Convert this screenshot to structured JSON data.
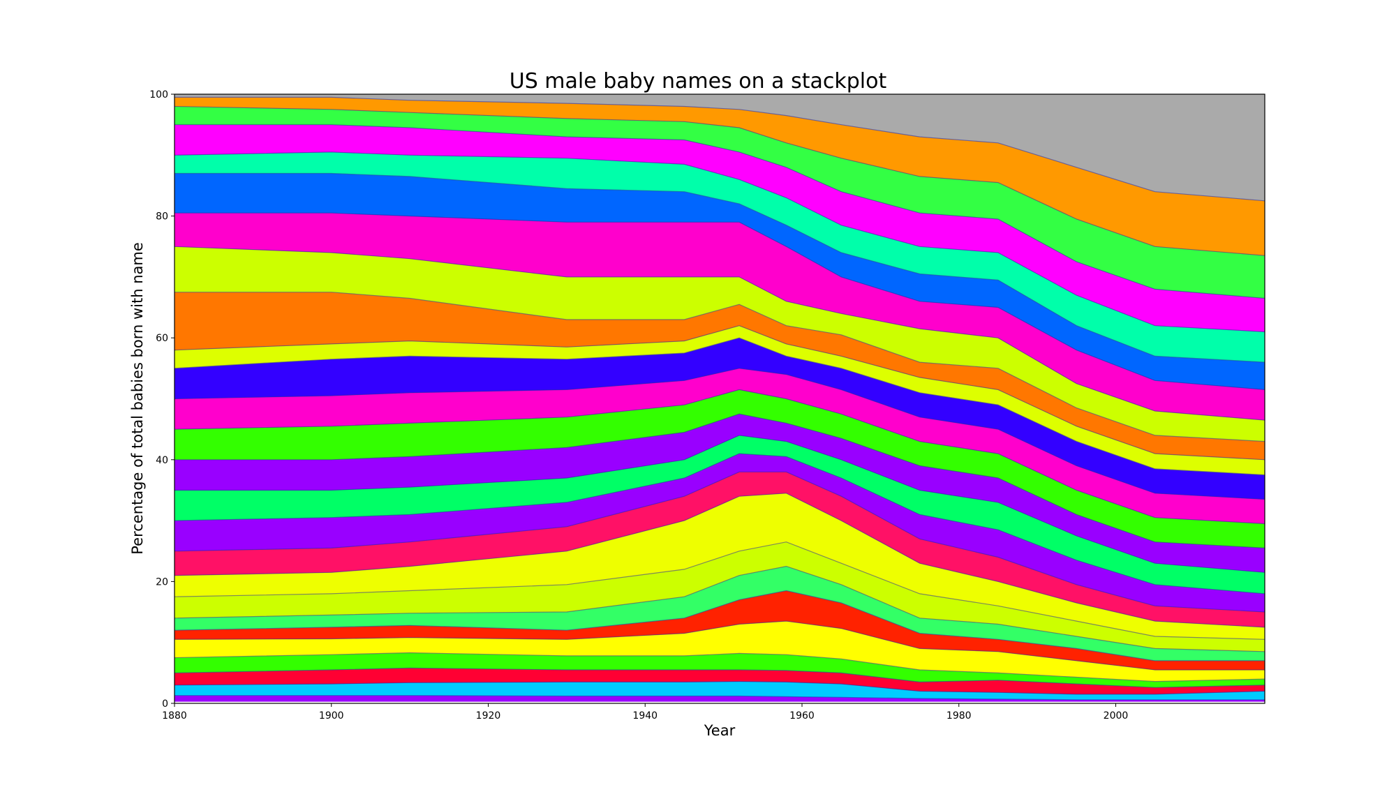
{
  "chart_data": {
    "type": "area",
    "stacked": true,
    "title": "US male baby names on a stackplot",
    "xlabel": "Year",
    "ylabel": "Percentage of total babies born with name",
    "xlim": [
      1880,
      2019
    ],
    "ylim": [
      0,
      100
    ],
    "xticks": [
      1880,
      1900,
      1920,
      1940,
      1960,
      1980,
      2000
    ],
    "yticks": [
      0,
      20,
      40,
      60,
      80,
      100
    ],
    "grid": false,
    "legend": "none",
    "x": [
      1880,
      1900,
      1910,
      1930,
      1945,
      1952,
      1958,
      1965,
      1975,
      1985,
      1995,
      2005,
      2019
    ],
    "boundaries": [
      [
        0.3,
        0.3,
        0.3,
        0.3,
        0.3,
        0.3,
        0.3,
        0.3,
        0.3,
        0.3,
        0.3,
        0.3,
        0.3
      ],
      [
        1.3,
        1.3,
        1.3,
        1.2,
        1.2,
        1.2,
        1.1,
        1.0,
        0.8,
        0.7,
        0.6,
        0.6,
        0.6
      ],
      [
        3.0,
        3.2,
        3.4,
        3.5,
        3.5,
        3.6,
        3.5,
        3.2,
        2.0,
        1.8,
        1.5,
        1.5,
        2.0
      ],
      [
        5.0,
        5.5,
        5.8,
        5.5,
        5.5,
        5.5,
        5.4,
        5.0,
        3.5,
        3.8,
        3.2,
        2.6,
        3.0
      ],
      [
        7.5,
        8.0,
        8.3,
        7.8,
        7.8,
        8.2,
        8.0,
        7.3,
        5.5,
        5.0,
        4.3,
        3.6,
        4.0
      ],
      [
        10.5,
        10.6,
        10.8,
        10.5,
        11.5,
        13.0,
        13.5,
        12.3,
        9.0,
        8.5,
        7.0,
        5.5,
        5.5
      ],
      [
        12.0,
        12.5,
        12.8,
        12.0,
        14.0,
        17.0,
        18.5,
        16.5,
        11.5,
        10.5,
        9.0,
        7.0,
        7.0
      ],
      [
        14.0,
        14.5,
        14.8,
        15.0,
        17.5,
        21.0,
        22.5,
        19.5,
        14.0,
        13.0,
        11.0,
        9.0,
        8.5
      ],
      [
        17.5,
        18.0,
        18.5,
        19.5,
        22.0,
        25.0,
        26.5,
        23.0,
        18.0,
        16.0,
        13.5,
        11.0,
        10.5
      ],
      [
        21.0,
        21.5,
        22.5,
        25.0,
        30.0,
        34.0,
        34.5,
        30.0,
        23.0,
        20.0,
        16.5,
        13.5,
        12.5
      ],
      [
        25.0,
        25.5,
        26.5,
        29.0,
        34.0,
        38.0,
        38.0,
        34.0,
        27.0,
        24.0,
        19.5,
        16.0,
        15.0
      ],
      [
        30.0,
        30.5,
        31.0,
        33.0,
        37.0,
        41.0,
        40.5,
        37.0,
        31.0,
        28.5,
        23.5,
        19.5,
        18.0
      ],
      [
        35.0,
        35.0,
        35.5,
        37.0,
        40.0,
        44.0,
        43.0,
        40.0,
        35.0,
        33.0,
        27.5,
        23.0,
        21.5
      ],
      [
        40.0,
        40.0,
        40.5,
        42.0,
        44.5,
        47.5,
        46.0,
        43.5,
        39.0,
        37.0,
        31.0,
        26.5,
        25.5
      ],
      [
        45.0,
        45.5,
        46.0,
        47.0,
        49.0,
        51.5,
        50.0,
        47.5,
        43.0,
        41.0,
        35.0,
        30.5,
        29.5
      ],
      [
        50.0,
        50.5,
        51.0,
        51.5,
        53.0,
        55.0,
        54.0,
        51.5,
        47.0,
        45.0,
        39.0,
        34.5,
        33.5
      ],
      [
        55.0,
        56.5,
        57.0,
        56.5,
        57.5,
        60.0,
        57.0,
        55.0,
        51.0,
        49.0,
        43.0,
        38.5,
        37.5
      ],
      [
        58.0,
        59.0,
        59.5,
        58.5,
        59.5,
        62.0,
        59.0,
        57.0,
        53.5,
        51.5,
        45.5,
        41.0,
        40.0
      ],
      [
        67.5,
        67.5,
        66.5,
        63.0,
        63.0,
        65.5,
        62.0,
        60.5,
        56.0,
        55.0,
        48.5,
        44.0,
        43.0
      ],
      [
        75.0,
        74.0,
        73.0,
        70.0,
        70.0,
        70.0,
        66.0,
        64.0,
        61.5,
        60.0,
        52.5,
        48.0,
        46.5
      ],
      [
        80.5,
        80.5,
        80.0,
        79.0,
        79.0,
        79.0,
        75.0,
        70.0,
        66.0,
        65.0,
        58.0,
        53.0,
        51.5
      ],
      [
        87.0,
        87.0,
        86.5,
        84.5,
        84.0,
        82.0,
        78.5,
        74.0,
        70.5,
        69.5,
        62.0,
        57.0,
        56.0
      ],
      [
        90.0,
        90.5,
        90.0,
        89.5,
        88.5,
        86.0,
        83.0,
        78.5,
        75.0,
        74.0,
        67.0,
        62.0,
        61.0
      ],
      [
        95.0,
        95.0,
        94.5,
        93.0,
        92.5,
        90.5,
        88.0,
        84.0,
        80.5,
        79.5,
        72.5,
        68.0,
        66.5
      ],
      [
        98.0,
        97.5,
        97.0,
        96.0,
        95.5,
        94.5,
        92.0,
        89.5,
        86.5,
        85.5,
        79.5,
        75.0,
        73.5
      ],
      [
        99.5,
        99.5,
        99.0,
        98.5,
        98.0,
        97.5,
        96.5,
        95.0,
        93.0,
        92.0,
        88.0,
        84.0,
        82.5
      ],
      [
        100,
        100,
        100,
        100,
        100,
        100,
        100,
        100,
        100,
        100,
        100,
        100,
        100
      ]
    ],
    "colors": [
      "#9900ff",
      "#00ccff",
      "#ff0033",
      "#33ff00",
      "#ffff00",
      "#ff2200",
      "#33ff66",
      "#ccff00",
      "#eeff00",
      "#ff1166",
      "#9900ff",
      "#00ff66",
      "#9900ff",
      "#33ff00",
      "#ff00cc",
      "#3300ff",
      "#ddff00",
      "#ff7700",
      "#ccff00",
      "#ff00cc",
      "#0066ff",
      "#00ffaa",
      "#ff00ff",
      "#33ff44",
      "#ff9900",
      "#aaaaaa"
    ]
  }
}
